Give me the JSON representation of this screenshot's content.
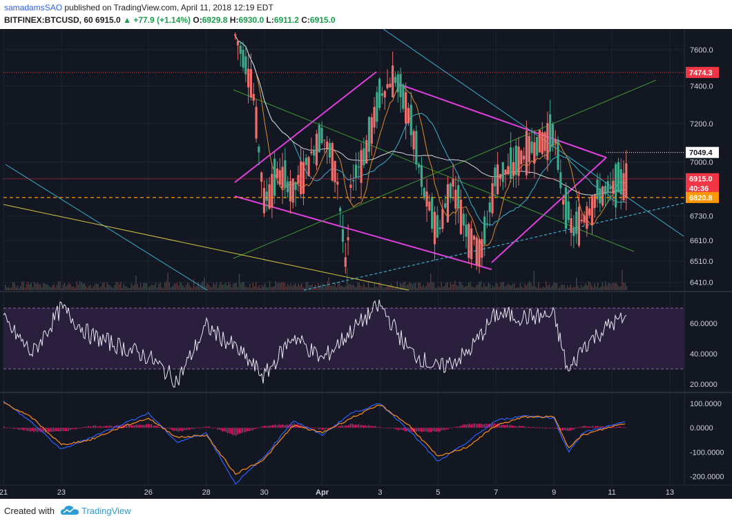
{
  "header": {
    "author": "samadamsSAO",
    "published": " published on TradingView.com, April 11, 2018 12:19 EDT",
    "symbol": "BITFINEX:BTCUSD, 60",
    "last": "6915.0",
    "change": "+77.9 (+1.14%)",
    "o_label": "O:",
    "o_value": "6929.8",
    "h_label": "H:",
    "h_value": "6930.0",
    "l_label": "L:",
    "l_value": "6911.2",
    "c_label": "C:",
    "c_value": "6915.0"
  },
  "footer": {
    "created_with": "Created with",
    "brand": "TradingView"
  },
  "colors": {
    "background": "#131722",
    "grid": "#1f2433",
    "up": "#3fa98b",
    "down": "#ef6f6c",
    "magenta": "#e040e0",
    "cyan": "#37b3d0",
    "green": "#3a9a2e",
    "yellow": "#d6c63a",
    "rsi_bg": "#2a1f3d",
    "macd_hist": "#e2206e"
  },
  "chart_data": [
    {
      "type": "candlestick",
      "title": "BITFINEX:BTCUSD, 60",
      "x_tick_labels": [
        "21",
        "23",
        "26",
        "28",
        "30",
        "Apr",
        "3",
        "5",
        "7",
        "9",
        "11",
        "13"
      ],
      "y_tick_labels": [
        "7600.0",
        "7400.0",
        "7200.0",
        "7000.0",
        "6730.0",
        "6610.0",
        "6510.0",
        "6410.0"
      ],
      "y_scale": "log",
      "ylim": [
        6380,
        7700
      ],
      "price_labels": [
        {
          "label": "7474.3",
          "value": 7474.3,
          "color": "#f23645",
          "style": "dotted-line"
        },
        {
          "label": "7049.4",
          "value": 7049.4,
          "color": "#ffffff",
          "style": "dotted-line"
        },
        {
          "label": "6915.0",
          "value": 6915.0,
          "color": "#f23645",
          "style": "last-price"
        },
        {
          "label": "40:36",
          "value": 6855,
          "color": "#f23645",
          "style": "countdown"
        },
        {
          "label": "6820.8",
          "value": 6820.8,
          "color": "#ff9800",
          "style": "dashed-line"
        }
      ],
      "swing_points": [
        {
          "date": "2018-03-29",
          "close": 7680
        },
        {
          "date": "2018-03-29T14:00",
          "close": 7420
        },
        {
          "date": "2018-03-30",
          "close": 6800
        },
        {
          "date": "2018-03-30T12:00",
          "close": 6950
        },
        {
          "date": "2018-03-31",
          "close": 6850
        },
        {
          "date": "2018-04-01",
          "close": 7150
        },
        {
          "date": "2018-04-01T12:00",
          "close": 6950
        },
        {
          "date": "2018-04-01T20:00",
          "close": 6450
        },
        {
          "date": "2018-04-02",
          "close": 6900
        },
        {
          "date": "2018-04-02T12:00",
          "close": 7050
        },
        {
          "date": "2018-04-03",
          "close": 7350
        },
        {
          "date": "2018-04-03T12:00",
          "close": 7450
        },
        {
          "date": "2018-04-04",
          "close": 7250
        },
        {
          "date": "2018-04-04T12:00",
          "close": 6850
        },
        {
          "date": "2018-04-05",
          "close": 6650
        },
        {
          "date": "2018-04-05T12:00",
          "close": 6900
        },
        {
          "date": "2018-04-06",
          "close": 6650
        },
        {
          "date": "2018-04-06T12:00",
          "close": 6560
        },
        {
          "date": "2018-04-07",
          "close": 6930
        },
        {
          "date": "2018-04-07T12:00",
          "close": 6960
        },
        {
          "date": "2018-04-08",
          "close": 7050
        },
        {
          "date": "2018-04-08T12:00",
          "close": 7100
        },
        {
          "date": "2018-04-09",
          "close": 7150
        },
        {
          "date": "2018-04-09T08:00",
          "close": 6800
        },
        {
          "date": "2018-04-09T16:00",
          "close": 6650
        },
        {
          "date": "2018-04-10",
          "close": 6720
        },
        {
          "date": "2018-04-10T12:00",
          "close": 6830
        },
        {
          "date": "2018-04-11",
          "close": 6860
        },
        {
          "date": "2018-04-11T12:00",
          "close": 6915
        }
      ]
    },
    {
      "type": "line",
      "title": "RSI",
      "y_tick_labels": [
        "60.0000",
        "40.0000",
        "20.0000"
      ],
      "ylim": [
        15,
        80
      ],
      "bands": [
        30,
        70
      ],
      "points": [
        {
          "date": "2018-03-21",
          "value": 62
        },
        {
          "date": "2018-03-22",
          "value": 40
        },
        {
          "date": "2018-03-23",
          "value": 70
        },
        {
          "date": "2018-03-24",
          "value": 52
        },
        {
          "date": "2018-03-25",
          "value": 45
        },
        {
          "date": "2018-03-26",
          "value": 38
        },
        {
          "date": "2018-03-27",
          "value": 22
        },
        {
          "date": "2018-03-28",
          "value": 58
        },
        {
          "date": "2018-03-29",
          "value": 44
        },
        {
          "date": "2018-03-30",
          "value": 25
        },
        {
          "date": "2018-03-31",
          "value": 52
        },
        {
          "date": "2018-04-01",
          "value": 36
        },
        {
          "date": "2018-04-02",
          "value": 55
        },
        {
          "date": "2018-04-03",
          "value": 72
        },
        {
          "date": "2018-04-04",
          "value": 42
        },
        {
          "date": "2018-04-05",
          "value": 30
        },
        {
          "date": "2018-04-06",
          "value": 40
        },
        {
          "date": "2018-04-07",
          "value": 66
        },
        {
          "date": "2018-04-08",
          "value": 64
        },
        {
          "date": "2018-04-09",
          "value": 65
        },
        {
          "date": "2018-04-09T12:00",
          "value": 27
        },
        {
          "date": "2018-04-10",
          "value": 45
        },
        {
          "date": "2018-04-11",
          "value": 60
        },
        {
          "date": "2018-04-11T12:00",
          "value": 63
        }
      ]
    },
    {
      "type": "line",
      "title": "MACD",
      "y_tick_labels": [
        "100.0000",
        "0.0000",
        "-100.0000",
        "-200.0000"
      ],
      "ylim": [
        -230,
        140
      ],
      "series": [
        {
          "name": "MACD",
          "color": "#2962ff",
          "values": [
            110,
            20,
            -90,
            -40,
            10,
            60,
            -60,
            -20,
            -230,
            -120,
            30,
            -30,
            60,
            100,
            -10,
            -140,
            -60,
            30,
            50,
            40,
            -100,
            -20,
            10,
            25
          ]
        },
        {
          "name": "Signal",
          "color": "#ff8c1a",
          "values": [
            105,
            40,
            -70,
            -50,
            0,
            40,
            -40,
            -30,
            -190,
            -130,
            10,
            -20,
            40,
            95,
            10,
            -120,
            -80,
            10,
            45,
            45,
            -80,
            -30,
            5,
            20
          ]
        }
      ],
      "dates": [
        "2018-03-21",
        "2018-03-22",
        "2018-03-23",
        "2018-03-24",
        "2018-03-25",
        "2018-03-26",
        "2018-03-27",
        "2018-03-28",
        "2018-03-29",
        "2018-03-30",
        "2018-03-31",
        "2018-04-01",
        "2018-04-02",
        "2018-04-03",
        "2018-04-04",
        "2018-04-05",
        "2018-04-06",
        "2018-04-07",
        "2018-04-08",
        "2018-04-09",
        "2018-04-09T12:00",
        "2018-04-10",
        "2018-04-11",
        "2018-04-11T12:00"
      ]
    }
  ]
}
